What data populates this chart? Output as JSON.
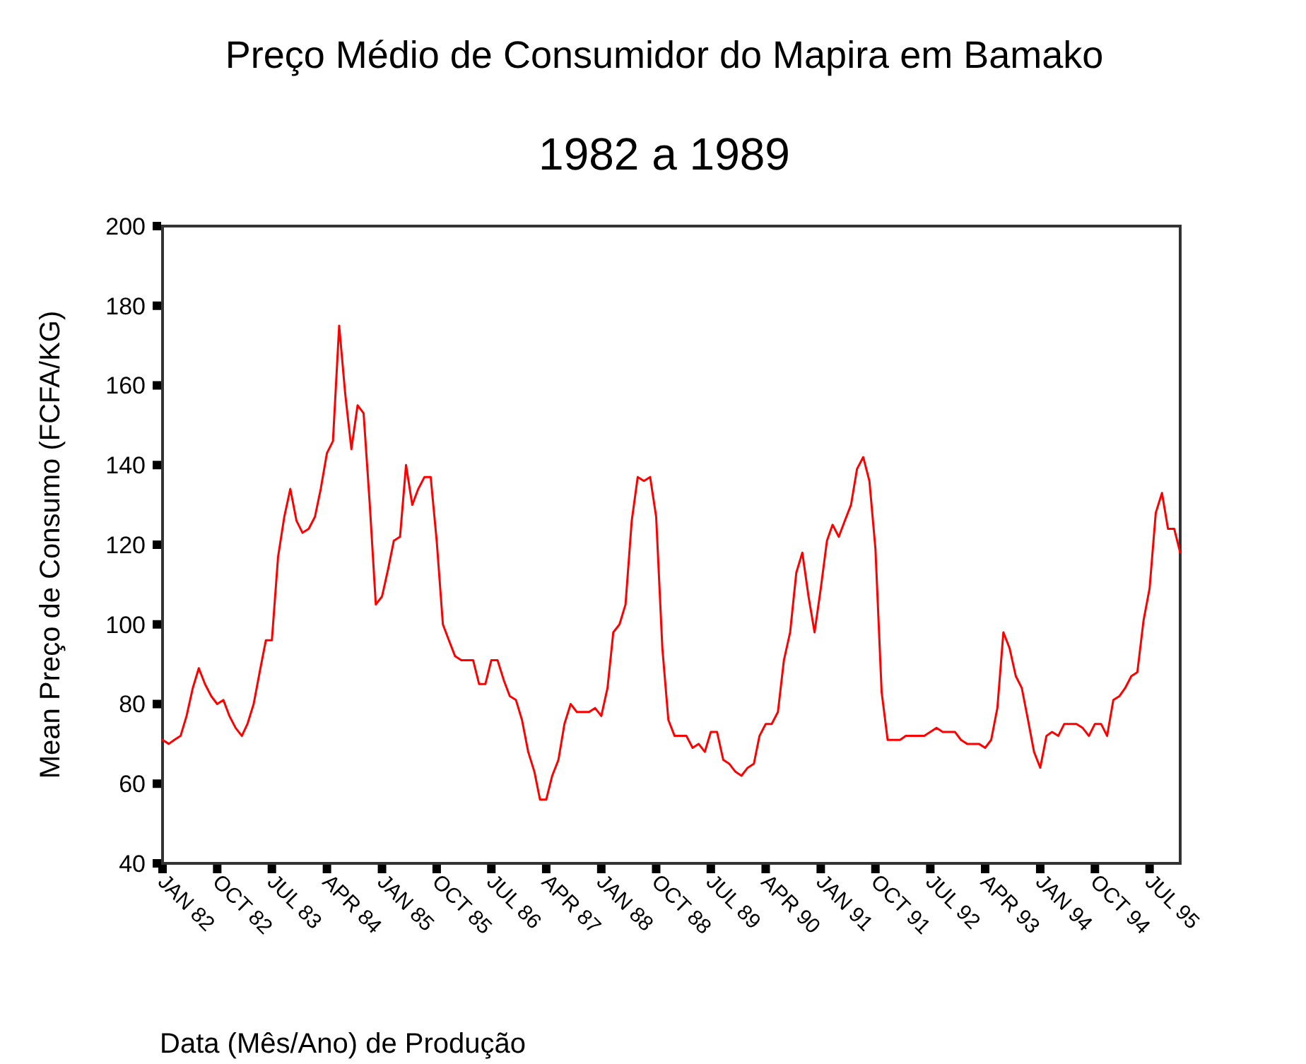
{
  "chart_data": {
    "type": "line",
    "title": "Preço Médio de Consumidor do Mapira em Bamako",
    "subtitle": "1982 a 1989",
    "xlabel": "Data (Mês/Ano) de Produção",
    "ylabel": "Mean Preço de Consumo (FCFA/KG)",
    "x": [
      "1982-01",
      "1982-02",
      "1982-03",
      "1982-04",
      "1982-05",
      "1982-06",
      "1982-07",
      "1982-08",
      "1982-09",
      "1982-10",
      "1982-11",
      "1982-12",
      "1983-01",
      "1983-02",
      "1983-03",
      "1983-04",
      "1983-05",
      "1983-06",
      "1983-07",
      "1983-08",
      "1983-09",
      "1983-10",
      "1983-11",
      "1983-12",
      "1984-01",
      "1984-02",
      "1984-03",
      "1984-04",
      "1984-05",
      "1984-06",
      "1984-07",
      "1984-08",
      "1984-09",
      "1984-10",
      "1984-11",
      "1984-12",
      "1985-01",
      "1985-02",
      "1985-03",
      "1985-04",
      "1985-05",
      "1985-06",
      "1985-07",
      "1985-08",
      "1985-09",
      "1985-10",
      "1985-11",
      "1985-12",
      "1986-01",
      "1986-02",
      "1986-03",
      "1986-04",
      "1986-05",
      "1986-06",
      "1986-07",
      "1986-08",
      "1986-09",
      "1986-10",
      "1986-11",
      "1986-12",
      "1987-01",
      "1987-02",
      "1987-03",
      "1987-04",
      "1987-05",
      "1987-06",
      "1987-07",
      "1987-08",
      "1987-09",
      "1987-10",
      "1987-11",
      "1987-12",
      "1988-01",
      "1988-02",
      "1988-03",
      "1988-04",
      "1988-05",
      "1988-06",
      "1988-07",
      "1988-08",
      "1988-09",
      "1988-10",
      "1988-11",
      "1988-12",
      "1989-01",
      "1989-02",
      "1989-03",
      "1989-04",
      "1989-05",
      "1989-06",
      "1989-07",
      "1989-08",
      "1989-09",
      "1989-10",
      "1989-11",
      "1989-12",
      "1990-01",
      "1990-02",
      "1990-03",
      "1990-04",
      "1990-05",
      "1990-06",
      "1990-07",
      "1990-08",
      "1990-09",
      "1990-10",
      "1990-11",
      "1990-12",
      "1991-01",
      "1991-02",
      "1991-03",
      "1991-04",
      "1991-05",
      "1991-06",
      "1991-07",
      "1991-08",
      "1991-09",
      "1991-10",
      "1991-11",
      "1991-12",
      "1992-01",
      "1992-02",
      "1992-03",
      "1992-04",
      "1992-05",
      "1992-06",
      "1992-07",
      "1992-08",
      "1992-09",
      "1992-10",
      "1992-11",
      "1992-12",
      "1993-01",
      "1993-02",
      "1993-03",
      "1993-04",
      "1993-05",
      "1993-06",
      "1993-07",
      "1993-08",
      "1993-09",
      "1993-10",
      "1993-11",
      "1993-12",
      "1994-01",
      "1994-02",
      "1994-03",
      "1994-04",
      "1994-05",
      "1994-06",
      "1994-07",
      "1994-08",
      "1994-09",
      "1994-10",
      "1994-11",
      "1994-12",
      "1995-01",
      "1995-02",
      "1995-03",
      "1995-04",
      "1995-05",
      "1995-06",
      "1995-07",
      "1995-08",
      "1995-09",
      "1995-10",
      "1995-11",
      "1995-12"
    ],
    "series": [
      {
        "color": "#ff0000",
        "values": [
          71,
          70,
          71,
          72,
          77,
          84,
          89,
          85,
          82,
          80,
          81,
          77,
          74,
          72,
          75,
          80,
          88,
          96,
          96,
          117,
          127,
          134,
          126,
          123,
          124,
          127,
          134,
          143,
          146,
          175,
          158,
          144,
          155,
          153,
          130,
          105,
          107,
          114,
          121,
          122,
          140,
          130,
          134,
          137,
          137,
          121,
          100,
          96,
          92,
          91,
          91,
          91,
          85,
          85,
          91,
          91,
          86,
          82,
          81,
          76,
          68,
          63,
          56,
          56,
          62,
          66,
          75,
          80,
          78,
          78,
          78,
          79,
          77,
          84,
          98,
          100,
          105,
          126,
          137,
          136,
          137,
          127,
          94,
          76,
          72,
          72,
          72,
          69,
          70,
          68,
          73,
          73,
          66,
          65,
          63,
          62,
          64,
          65,
          72,
          75,
          75,
          78,
          91,
          98,
          113,
          118,
          107,
          98,
          109,
          121,
          125,
          122,
          126,
          130,
          139,
          142,
          136,
          119,
          83,
          71,
          71,
          71,
          72,
          72,
          72,
          72,
          73,
          74,
          73,
          73,
          73,
          71,
          70,
          70,
          70,
          69,
          71,
          79,
          98,
          94,
          87,
          84,
          76,
          68,
          64,
          72,
          73,
          72,
          75,
          75,
          75,
          74,
          72,
          75,
          75,
          72,
          81,
          82,
          84,
          87,
          88,
          101,
          109,
          128,
          133,
          124,
          124,
          118
        ]
      }
    ],
    "xlim": [
      "1982-01",
      "1995-12"
    ],
    "xticks": [
      {
        "value": "1982-01",
        "label": "JAN 82"
      },
      {
        "value": "1982-10",
        "label": "OCT 82"
      },
      {
        "value": "1983-07",
        "label": "JUL 83"
      },
      {
        "value": "1984-04",
        "label": "APR 84"
      },
      {
        "value": "1985-01",
        "label": "JAN 85"
      },
      {
        "value": "1985-10",
        "label": "OCT 85"
      },
      {
        "value": "1986-07",
        "label": "JUL 86"
      },
      {
        "value": "1987-04",
        "label": "APR 87"
      },
      {
        "value": "1988-01",
        "label": "JAN 88"
      },
      {
        "value": "1988-10",
        "label": "OCT 88"
      },
      {
        "value": "1989-07",
        "label": "JUL 89"
      },
      {
        "value": "1990-04",
        "label": "APR 90"
      },
      {
        "value": "1991-01",
        "label": "JAN 91"
      },
      {
        "value": "1991-10",
        "label": "OCT 91"
      },
      {
        "value": "1992-07",
        "label": "JUL 92"
      },
      {
        "value": "1993-04",
        "label": "APR 93"
      },
      {
        "value": "1994-01",
        "label": "JAN 94"
      },
      {
        "value": "1994-10",
        "label": "OCT 94"
      },
      {
        "value": "1995-07",
        "label": "JUL 95"
      }
    ],
    "ylim": [
      40,
      200
    ],
    "yticks": [
      40,
      60,
      80,
      100,
      120,
      140,
      160,
      180,
      200
    ],
    "grid": false,
    "marker": "none",
    "line_style": "solid"
  }
}
